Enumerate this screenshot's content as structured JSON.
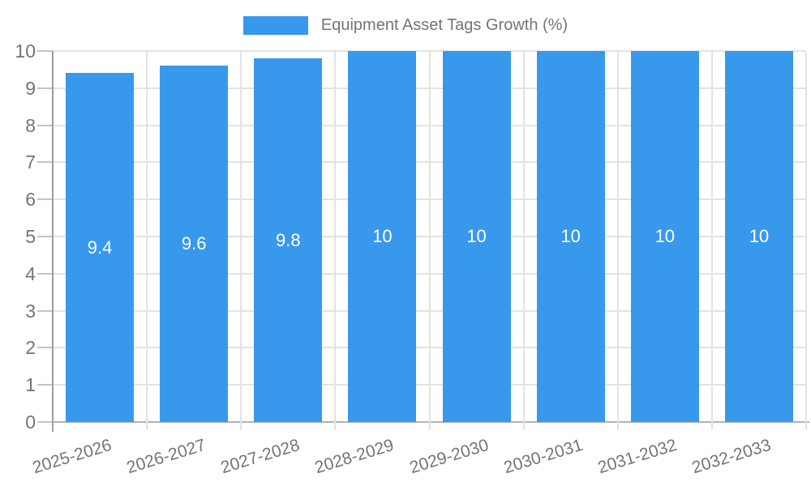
{
  "chart_data": {
    "type": "bar",
    "title": "Equipment Asset Tags Growth (%)",
    "categories": [
      "2025-2026",
      "2026-2027",
      "2027-2028",
      "2028-2029",
      "2029-2030",
      "2030-2031",
      "2031-2032",
      "2032-2033"
    ],
    "values": [
      9.4,
      9.6,
      9.8,
      10,
      10,
      10,
      10,
      10
    ],
    "bar_value_labels": [
      "9.4",
      "9.6",
      "9.8",
      "10",
      "10",
      "10",
      "10",
      "10"
    ],
    "xlabel": "",
    "ylabel": "",
    "ylim": [
      0,
      10
    ],
    "yticks": [
      0,
      1,
      2,
      3,
      4,
      5,
      6,
      7,
      8,
      9,
      10
    ],
    "grid": true,
    "legend": {
      "position": "top-center",
      "entries": [
        "Equipment Asset Tags Growth (%)"
      ]
    },
    "colors": {
      "bar": "#3899EC",
      "grid": "#E3E3E3",
      "axis": "#9E9E9E",
      "baseline": "#B3B3B3",
      "tick": "#C4C4C4",
      "label_text": "#757575",
      "bar_label_text": "#FFFFFF",
      "background": "#FFFFFF"
    }
  }
}
